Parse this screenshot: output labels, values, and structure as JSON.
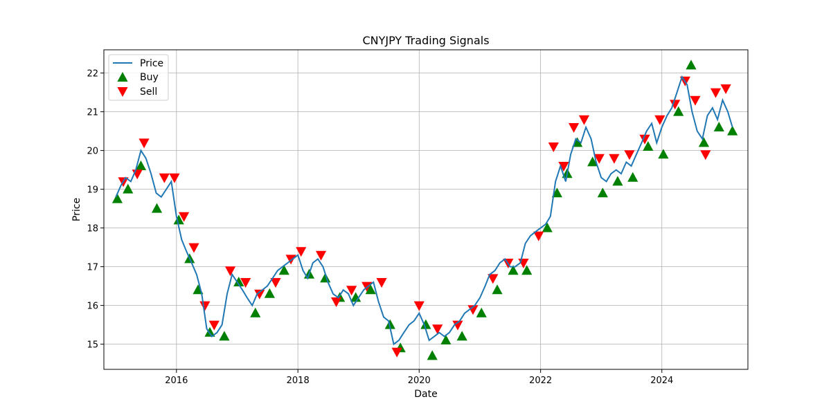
{
  "chart_data": {
    "type": "line",
    "title": "CNYJPY Trading Signals",
    "xlabel": "Date",
    "ylabel": "Price",
    "xlim": [
      "2014-10-21",
      "2025-06-02"
    ],
    "ylim": [
      14.35,
      22.6
    ],
    "x_ticks": [
      "2016",
      "2018",
      "2020",
      "2022",
      "2024"
    ],
    "y_ticks": [
      "15",
      "16",
      "17",
      "18",
      "19",
      "20",
      "21",
      "22"
    ],
    "grid": true,
    "legend_position": "top-left",
    "colors": {
      "price": "#1f77b4",
      "buy": "#008000",
      "sell": "#ff0000"
    },
    "series": [
      {
        "name": "Price",
        "style": "line",
        "x": [
          "2015-01-01",
          "2015-02-01",
          "2015-03-01",
          "2015-04-01",
          "2015-05-01",
          "2015-06-01",
          "2015-07-01",
          "2015-08-01",
          "2015-09-01",
          "2015-10-01",
          "2015-11-01",
          "2015-12-01",
          "2016-01-01",
          "2016-02-01",
          "2016-03-01",
          "2016-04-01",
          "2016-05-01",
          "2016-06-01",
          "2016-07-01",
          "2016-08-01",
          "2016-09-01",
          "2016-10-01",
          "2016-11-01",
          "2016-12-01",
          "2017-01-01",
          "2017-02-01",
          "2017-03-01",
          "2017-04-01",
          "2017-05-01",
          "2017-06-01",
          "2017-07-01",
          "2017-08-01",
          "2017-09-01",
          "2017-10-01",
          "2017-11-01",
          "2017-12-01",
          "2018-01-01",
          "2018-02-01",
          "2018-03-01",
          "2018-04-01",
          "2018-05-01",
          "2018-06-01",
          "2018-07-01",
          "2018-08-01",
          "2018-09-01",
          "2018-10-01",
          "2018-11-01",
          "2018-12-01",
          "2019-01-01",
          "2019-02-01",
          "2019-03-01",
          "2019-04-01",
          "2019-05-01",
          "2019-06-01",
          "2019-07-01",
          "2019-08-01",
          "2019-09-01",
          "2019-10-01",
          "2019-11-01",
          "2019-12-01",
          "2020-01-01",
          "2020-02-01",
          "2020-03-01",
          "2020-04-01",
          "2020-05-01",
          "2020-06-01",
          "2020-07-01",
          "2020-08-01",
          "2020-09-01",
          "2020-10-01",
          "2020-11-01",
          "2020-12-01",
          "2021-01-01",
          "2021-02-01",
          "2021-03-01",
          "2021-04-01",
          "2021-05-01",
          "2021-06-01",
          "2021-07-01",
          "2021-08-01",
          "2021-09-01",
          "2021-10-01",
          "2021-11-01",
          "2021-12-01",
          "2022-01-01",
          "2022-02-01",
          "2022-03-01",
          "2022-04-01",
          "2022-05-01",
          "2022-06-01",
          "2022-07-01",
          "2022-08-01",
          "2022-09-01",
          "2022-10-01",
          "2022-11-01",
          "2022-12-01",
          "2023-01-01",
          "2023-02-01",
          "2023-03-01",
          "2023-04-01",
          "2023-05-01",
          "2023-06-01",
          "2023-07-01",
          "2023-08-01",
          "2023-09-01",
          "2023-10-01",
          "2023-11-01",
          "2023-12-01",
          "2024-01-01",
          "2024-02-01",
          "2024-03-01",
          "2024-04-01",
          "2024-05-01",
          "2024-06-01",
          "2024-07-01",
          "2024-08-01",
          "2024-09-01",
          "2024-10-01",
          "2024-11-01",
          "2024-12-01",
          "2025-01-01",
          "2025-02-01",
          "2025-03-01"
        ],
        "values": [
          18.8,
          19.1,
          19.3,
          19.2,
          19.5,
          20.0,
          19.8,
          19.4,
          18.9,
          18.8,
          19.0,
          19.2,
          18.3,
          17.7,
          17.4,
          17.1,
          16.8,
          16.3,
          15.4,
          15.2,
          15.3,
          15.5,
          16.3,
          16.8,
          16.6,
          16.4,
          16.2,
          16.0,
          16.3,
          16.4,
          16.5,
          16.7,
          16.9,
          17.0,
          17.1,
          17.2,
          17.3,
          16.9,
          16.7,
          17.1,
          17.2,
          17.0,
          16.6,
          16.3,
          16.2,
          16.4,
          16.3,
          16.0,
          16.2,
          16.4,
          16.5,
          16.6,
          16.1,
          15.7,
          15.6,
          15.0,
          15.1,
          15.3,
          15.5,
          15.6,
          15.8,
          15.5,
          15.1,
          15.2,
          15.3,
          15.2,
          15.3,
          15.5,
          15.6,
          15.8,
          15.9,
          16.0,
          16.2,
          16.5,
          16.8,
          16.9,
          17.1,
          17.2,
          17.0,
          17.0,
          17.1,
          17.6,
          17.8,
          17.9,
          18.0,
          18.1,
          18.3,
          19.2,
          19.6,
          19.2,
          19.9,
          20.3,
          20.2,
          20.6,
          20.3,
          19.7,
          19.3,
          19.2,
          19.4,
          19.5,
          19.4,
          19.7,
          19.6,
          19.9,
          20.2,
          20.5,
          20.7,
          20.2,
          20.6,
          20.9,
          21.1,
          21.5,
          21.9,
          21.7,
          21.0,
          20.5,
          20.3,
          20.9,
          21.1,
          20.8,
          21.3,
          21.0,
          20.6
        ]
      },
      {
        "name": "Buy",
        "style": "marker-up",
        "x": [
          "2015-01-10",
          "2015-03-15",
          "2015-06-01",
          "2015-09-05",
          "2016-01-15",
          "2016-03-20",
          "2016-05-10",
          "2016-07-20",
          "2016-10-15",
          "2017-01-10",
          "2017-04-20",
          "2017-07-15",
          "2017-10-10",
          "2018-03-10",
          "2018-06-15",
          "2018-09-10",
          "2018-12-15",
          "2019-03-15",
          "2019-07-10",
          "2019-09-10",
          "2020-02-10",
          "2020-03-20",
          "2020-06-10",
          "2020-09-15",
          "2021-01-10",
          "2021-04-15",
          "2021-07-20",
          "2021-10-10",
          "2022-02-10",
          "2022-04-10",
          "2022-06-10",
          "2022-08-10",
          "2022-11-10",
          "2023-01-10",
          "2023-04-10",
          "2023-07-10",
          "2023-10-10",
          "2024-01-10",
          "2024-04-10",
          "2024-06-25",
          "2024-09-10",
          "2024-12-10",
          "2025-03-01"
        ],
        "values": [
          18.75,
          19.0,
          19.6,
          18.5,
          18.2,
          17.2,
          16.4,
          15.3,
          15.2,
          16.6,
          15.8,
          16.3,
          16.9,
          16.8,
          16.7,
          16.2,
          16.2,
          16.4,
          15.5,
          14.9,
          15.5,
          14.7,
          15.1,
          15.2,
          15.8,
          16.4,
          16.9,
          16.9,
          18.0,
          18.9,
          19.4,
          20.2,
          19.7,
          18.9,
          19.2,
          19.3,
          20.1,
          19.9,
          21.0,
          22.2,
          20.2,
          20.6,
          20.5
        ]
      },
      {
        "name": "Sell",
        "style": "marker-down",
        "x": [
          "2015-02-15",
          "2015-05-10",
          "2015-06-20",
          "2015-10-20",
          "2015-12-20",
          "2016-02-15",
          "2016-04-15",
          "2016-06-20",
          "2016-08-15",
          "2016-11-20",
          "2017-02-20",
          "2017-05-15",
          "2017-08-20",
          "2017-11-20",
          "2018-01-20",
          "2018-05-20",
          "2018-08-20",
          "2018-11-20",
          "2019-02-20",
          "2019-05-20",
          "2019-08-20",
          "2020-01-01",
          "2020-04-20",
          "2020-08-20",
          "2020-11-20",
          "2021-03-20",
          "2021-06-20",
          "2021-09-20",
          "2021-12-20",
          "2022-03-20",
          "2022-05-20",
          "2022-07-20",
          "2022-09-20",
          "2022-12-20",
          "2023-03-20",
          "2023-06-20",
          "2023-09-20",
          "2023-12-20",
          "2024-03-20",
          "2024-05-20",
          "2024-07-20",
          "2024-09-20",
          "2024-11-20",
          "2025-01-20"
        ],
        "values": [
          19.2,
          19.4,
          20.2,
          19.3,
          19.3,
          18.3,
          17.5,
          16.0,
          15.5,
          16.9,
          16.6,
          16.3,
          16.6,
          17.2,
          17.4,
          17.3,
          16.1,
          16.4,
          16.5,
          16.6,
          14.8,
          16.0,
          15.4,
          15.5,
          15.9,
          16.7,
          17.1,
          17.1,
          17.8,
          20.1,
          19.6,
          20.6,
          20.8,
          19.8,
          19.8,
          19.9,
          20.3,
          20.8,
          21.2,
          21.8,
          21.3,
          19.9,
          21.5,
          21.6
        ]
      }
    ]
  }
}
